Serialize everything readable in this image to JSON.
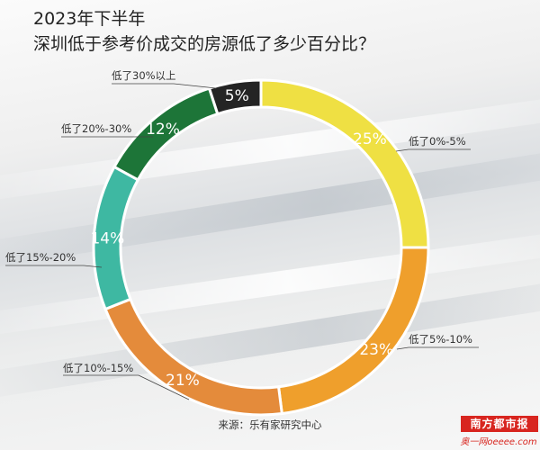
{
  "title_line1": "2023年下半年",
  "title_line2": "深圳低于参考价成交的房源低了多少百分比？",
  "source": "来源：乐有家研究中心",
  "logo_text": "南方都市报",
  "logo_subtext": "奥一网oeeee.com",
  "chart_data": {
    "type": "pie",
    "donut": true,
    "categories": [
      "低了0%-5%",
      "低了5%-10%",
      "低了10%-15%",
      "低了15%-20%",
      "低了20%-30%",
      "低了30%以上"
    ],
    "values": [
      25,
      23,
      21,
      14,
      12,
      5
    ],
    "value_labels": [
      "25%",
      "23%",
      "21%",
      "14%",
      "12%",
      "5%"
    ],
    "colors": [
      "#efe043",
      "#ef9f2c",
      "#e48b3b",
      "#3eb8a2",
      "#1d7538",
      "#242424"
    ]
  }
}
